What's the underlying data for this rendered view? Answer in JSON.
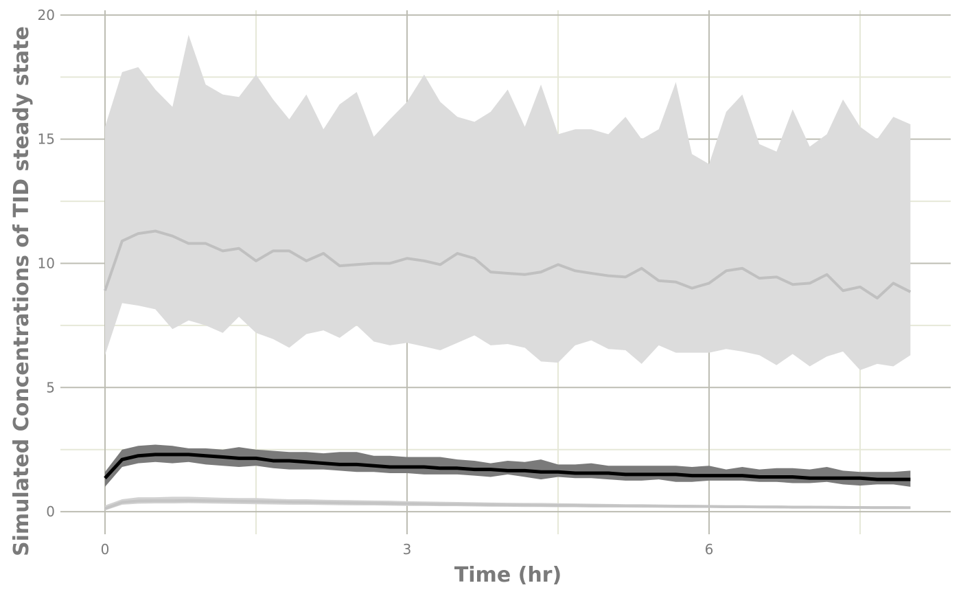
{
  "chart_data": {
    "type": "line",
    "xlabel": "Time (hr)",
    "ylabel": "Simulated Concentrations of TID steady state",
    "x": [
      0,
      0.17,
      0.33,
      0.5,
      0.67,
      0.83,
      1,
      1.17,
      1.33,
      1.5,
      1.67,
      1.83,
      2,
      2.17,
      2.33,
      2.5,
      2.67,
      2.83,
      3,
      3.17,
      3.33,
      3.5,
      3.67,
      3.83,
      4,
      4.17,
      4.33,
      4.5,
      4.67,
      4.83,
      5,
      5.17,
      5.33,
      5.5,
      5.67,
      5.83,
      6,
      6.17,
      6.33,
      6.5,
      6.67,
      6.83,
      7,
      7.17,
      7.33,
      7.5,
      7.67,
      7.83,
      8
    ],
    "xlim": [
      -0.443,
      8.4
    ],
    "xticks": [
      0,
      3,
      6
    ],
    "xminor": [
      1.5,
      4.5,
      7.5
    ],
    "ylim": [
      -0.91,
      20.19
    ],
    "yticks": [
      0,
      5,
      10,
      15,
      20
    ],
    "yminor": [
      2.5,
      7.5,
      12.5,
      17.5
    ],
    "grid": true,
    "bands": [
      {
        "color": "#dcdcdc",
        "upper": [
          15.5,
          17.7,
          17.9,
          17.0,
          16.3,
          19.2,
          17.2,
          16.8,
          16.7,
          17.6,
          16.6,
          15.8,
          16.8,
          15.4,
          16.4,
          16.9,
          15.1,
          15.8,
          16.5,
          17.6,
          16.5,
          15.9,
          15.7,
          16.1,
          17.0,
          15.5,
          17.2,
          15.2,
          15.4,
          15.4,
          15.2,
          15.9,
          15.0,
          15.4,
          17.3,
          14.4,
          14.0,
          16.1,
          16.8,
          14.8,
          14.5,
          16.2,
          14.7,
          15.2,
          16.6,
          15.5,
          15.0,
          15.9,
          15.6
        ],
        "lower": [
          6.3,
          8.4,
          8.3,
          8.15,
          7.35,
          7.7,
          7.5,
          7.2,
          7.85,
          7.2,
          6.95,
          6.6,
          7.15,
          7.3,
          7.0,
          7.5,
          6.85,
          6.7,
          6.8,
          6.65,
          6.5,
          6.8,
          7.1,
          6.7,
          6.75,
          6.6,
          6.05,
          6.0,
          6.7,
          6.9,
          6.55,
          6.5,
          5.95,
          6.7,
          6.4,
          6.4,
          6.4,
          6.55,
          6.45,
          6.3,
          5.9,
          6.35,
          5.85,
          6.25,
          6.45,
          5.7,
          5.95,
          5.85,
          6.3
        ]
      },
      {
        "color": "#7a7a7a",
        "upper": [
          1.6,
          2.5,
          2.65,
          2.7,
          2.65,
          2.55,
          2.55,
          2.5,
          2.6,
          2.5,
          2.45,
          2.4,
          2.4,
          2.35,
          2.4,
          2.4,
          2.25,
          2.25,
          2.2,
          2.2,
          2.2,
          2.1,
          2.05,
          1.95,
          2.05,
          2.0,
          2.1,
          1.9,
          1.9,
          1.95,
          1.85,
          1.85,
          1.85,
          1.85,
          1.85,
          1.8,
          1.85,
          1.7,
          1.8,
          1.7,
          1.75,
          1.75,
          1.7,
          1.8,
          1.65,
          1.6,
          1.6,
          1.6,
          1.65
        ],
        "lower": [
          1.0,
          1.8,
          1.95,
          2.0,
          1.95,
          2.0,
          1.9,
          1.85,
          1.8,
          1.85,
          1.75,
          1.7,
          1.7,
          1.7,
          1.65,
          1.6,
          1.6,
          1.55,
          1.55,
          1.5,
          1.5,
          1.5,
          1.45,
          1.4,
          1.5,
          1.4,
          1.3,
          1.4,
          1.35,
          1.35,
          1.3,
          1.25,
          1.25,
          1.3,
          1.2,
          1.2,
          1.25,
          1.25,
          1.25,
          1.2,
          1.2,
          1.15,
          1.15,
          1.2,
          1.1,
          1.05,
          1.1,
          1.1,
          1.0
        ]
      },
      {
        "color": "#d2d2d2",
        "upper": [
          0.25,
          0.5,
          0.58,
          0.58,
          0.6,
          0.6,
          0.58,
          0.56,
          0.55,
          0.55,
          0.52,
          0.5,
          0.5,
          0.48,
          0.47,
          0.46,
          0.45,
          0.44,
          0.42,
          0.41,
          0.4,
          0.39,
          0.38,
          0.37,
          0.36,
          0.35,
          0.35,
          0.34,
          0.33,
          0.32,
          0.31,
          0.3,
          0.3,
          0.29,
          0.28,
          0.28,
          0.27,
          0.26,
          0.26,
          0.25,
          0.25,
          0.24,
          0.24,
          0.23,
          0.23,
          0.22,
          0.22,
          0.22,
          0.21
        ],
        "lower": [
          0.05,
          0.28,
          0.32,
          0.33,
          0.33,
          0.34,
          0.33,
          0.32,
          0.31,
          0.3,
          0.29,
          0.28,
          0.28,
          0.27,
          0.26,
          0.25,
          0.25,
          0.24,
          0.23,
          0.23,
          0.22,
          0.22,
          0.21,
          0.2,
          0.2,
          0.19,
          0.19,
          0.18,
          0.18,
          0.17,
          0.17,
          0.17,
          0.16,
          0.16,
          0.15,
          0.15,
          0.15,
          0.14,
          0.14,
          0.14,
          0.13,
          0.13,
          0.13,
          0.12,
          0.12,
          0.12,
          0.11,
          0.11,
          0.11
        ]
      }
    ],
    "lines": [
      {
        "color": "#c0c0c0",
        "width": 4,
        "values": [
          8.9,
          10.9,
          11.2,
          11.3,
          11.1,
          10.8,
          10.8,
          10.5,
          10.6,
          10.1,
          10.5,
          10.5,
          10.1,
          10.4,
          9.9,
          9.95,
          10.0,
          10.0,
          10.2,
          10.1,
          9.95,
          10.4,
          10.2,
          9.65,
          9.6,
          9.55,
          9.65,
          9.95,
          9.7,
          9.6,
          9.5,
          9.45,
          9.8,
          9.3,
          9.25,
          9.0,
          9.2,
          9.7,
          9.8,
          9.4,
          9.45,
          9.15,
          9.2,
          9.55,
          8.9,
          9.05,
          8.6,
          9.2,
          8.85
        ]
      },
      {
        "color": "#000000",
        "width": 5,
        "values": [
          1.35,
          2.1,
          2.25,
          2.3,
          2.3,
          2.3,
          2.25,
          2.2,
          2.15,
          2.15,
          2.05,
          2.05,
          2.0,
          1.95,
          1.9,
          1.9,
          1.85,
          1.8,
          1.8,
          1.8,
          1.75,
          1.75,
          1.7,
          1.7,
          1.65,
          1.65,
          1.6,
          1.6,
          1.55,
          1.55,
          1.55,
          1.5,
          1.5,
          1.5,
          1.5,
          1.45,
          1.45,
          1.45,
          1.45,
          1.4,
          1.4,
          1.4,
          1.35,
          1.35,
          1.35,
          1.35,
          1.3,
          1.3,
          1.3
        ]
      },
      {
        "color": "#c4c4c4",
        "width": 4,
        "values": [
          0.12,
          0.38,
          0.43,
          0.44,
          0.44,
          0.45,
          0.44,
          0.43,
          0.42,
          0.41,
          0.4,
          0.39,
          0.38,
          0.37,
          0.36,
          0.35,
          0.34,
          0.33,
          0.32,
          0.31,
          0.3,
          0.3,
          0.29,
          0.28,
          0.27,
          0.27,
          0.26,
          0.25,
          0.25,
          0.24,
          0.24,
          0.23,
          0.23,
          0.22,
          0.22,
          0.21,
          0.21,
          0.2,
          0.2,
          0.19,
          0.19,
          0.18,
          0.18,
          0.18,
          0.17,
          0.17,
          0.16,
          0.16,
          0.16
        ]
      }
    ]
  }
}
